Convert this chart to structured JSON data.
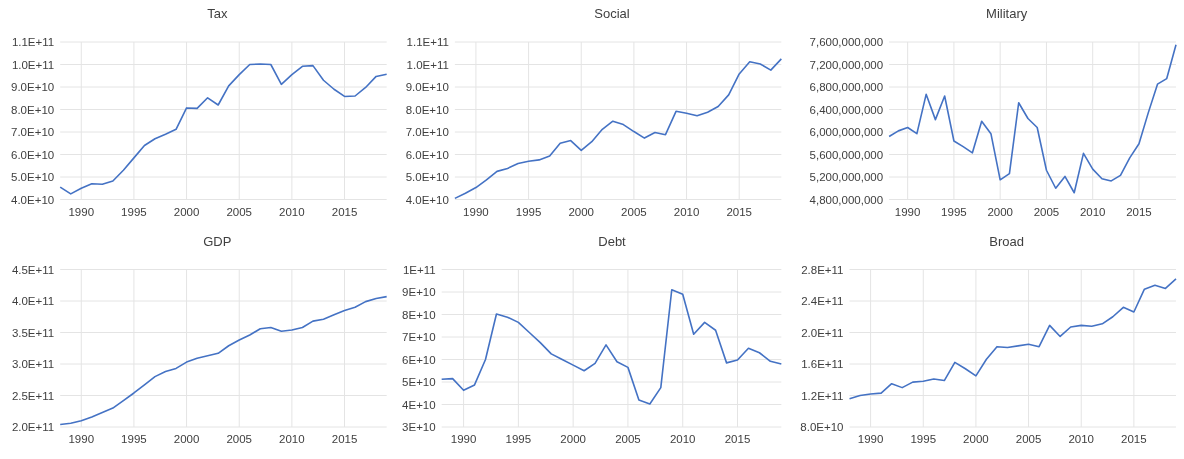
{
  "chart_data": [
    {
      "type": "line",
      "title": "Tax",
      "color": "#4472c4",
      "grid": true,
      "x": [
        1988,
        1989,
        1990,
        1991,
        1992,
        1993,
        1994,
        1995,
        1996,
        1997,
        1998,
        1999,
        2000,
        2001,
        2002,
        2003,
        2004,
        2005,
        2006,
        2007,
        2008,
        2009,
        2010,
        2011,
        2012,
        2013,
        2014,
        2015,
        2016,
        2017,
        2018,
        2019
      ],
      "values": [
        45500000000.0,
        42500000000.0,
        45000000000.0,
        47000000000.0,
        46800000000.0,
        48200000000.0,
        53000000000.0,
        58500000000.0,
        64000000000.0,
        67000000000.0,
        69000000000.0,
        71200000000.0,
        80700000000.0,
        80500000000.0,
        85200000000.0,
        82000000000.0,
        90500000000.0,
        95500000000.0,
        100000000000.0,
        100200000000.0,
        100000000000.0,
        91200000000.0,
        95500000000.0,
        99200000000.0,
        99500000000.0,
        93000000000.0,
        89000000000.0,
        85800000000.0,
        86000000000.0,
        89800000000.0,
        94700000000.0,
        95700000000.0
      ],
      "xlim": [
        1988,
        2019
      ],
      "xticks": [
        1990,
        1995,
        2000,
        2005,
        2010,
        2015
      ],
      "ylim": [
        40000000000.0,
        110000000000.0
      ],
      "yticks": [
        {
          "value": 40000000000.0,
          "label": "4.0E+10"
        },
        {
          "value": 50000000000.0,
          "label": "5.0E+10"
        },
        {
          "value": 60000000000.0,
          "label": "6.0E+10"
        },
        {
          "value": 70000000000.0,
          "label": "7.0E+10"
        },
        {
          "value": 80000000000.0,
          "label": "8.0E+10"
        },
        {
          "value": 90000000000.0,
          "label": "9.0E+10"
        },
        {
          "value": 100000000000.0,
          "label": "1.0E+11"
        },
        {
          "value": 110000000000.0,
          "label": "1.1E+11"
        }
      ]
    },
    {
      "type": "line",
      "title": "Social",
      "color": "#4472c4",
      "grid": true,
      "x": [
        1988,
        1989,
        1990,
        1991,
        1992,
        1993,
        1994,
        1995,
        1996,
        1997,
        1998,
        1999,
        2000,
        2001,
        2002,
        2003,
        2004,
        2005,
        2006,
        2007,
        2008,
        2009,
        2010,
        2011,
        2012,
        2013,
        2014,
        2015,
        2016,
        2017,
        2018,
        2019
      ],
      "values": [
        40500000000.0,
        42800000000.0,
        45300000000.0,
        48700000000.0,
        52500000000.0,
        53800000000.0,
        56000000000.0,
        57000000000.0,
        57600000000.0,
        59300000000.0,
        65000000000.0,
        66200000000.0,
        61800000000.0,
        65700000000.0,
        71200000000.0,
        74800000000.0,
        73300000000.0,
        70200000000.0,
        67300000000.0,
        69800000000.0,
        68800000000.0,
        79200000000.0,
        78300000000.0,
        77200000000.0,
        78800000000.0,
        81300000000.0,
        86500000000.0,
        95800000000.0,
        101200000000.0,
        100200000000.0,
        97500000000.0,
        102500000000.0
      ],
      "xlim": [
        1988,
        2019
      ],
      "xticks": [
        1990,
        1995,
        2000,
        2005,
        2010,
        2015
      ],
      "ylim": [
        40000000000.0,
        110000000000.0
      ],
      "yticks": [
        {
          "value": 40000000000.0,
          "label": "4.0E+10"
        },
        {
          "value": 50000000000.0,
          "label": "5.0E+10"
        },
        {
          "value": 60000000000.0,
          "label": "6.0E+10"
        },
        {
          "value": 70000000000.0,
          "label": "7.0E+10"
        },
        {
          "value": 80000000000.0,
          "label": "8.0E+10"
        },
        {
          "value": 90000000000.0,
          "label": "9.0E+10"
        },
        {
          "value": 100000000000.0,
          "label": "1.0E+11"
        },
        {
          "value": 110000000000.0,
          "label": "1.1E+11"
        }
      ]
    },
    {
      "type": "line",
      "title": "Military",
      "color": "#4472c4",
      "grid": true,
      "x": [
        1988,
        1989,
        1990,
        1991,
        1992,
        1993,
        1994,
        1995,
        1996,
        1997,
        1998,
        1999,
        2000,
        2001,
        2002,
        2003,
        2004,
        2005,
        2006,
        2007,
        2008,
        2009,
        2010,
        2011,
        2012,
        2013,
        2014,
        2015,
        2016,
        2017,
        2018,
        2019
      ],
      "values": [
        5920000000.0,
        6020000000.0,
        6080000000.0,
        5970000000.0,
        6670000000.0,
        6220000000.0,
        6640000000.0,
        5840000000.0,
        5740000000.0,
        5630000000.0,
        6190000000.0,
        5970000000.0,
        5150000000.0,
        5260000000.0,
        6520000000.0,
        6240000000.0,
        6080000000.0,
        5320000000.0,
        5000000000.0,
        5210000000.0,
        4920000000.0,
        5620000000.0,
        5340000000.0,
        5170000000.0,
        5130000000.0,
        5230000000.0,
        5540000000.0,
        5790000000.0,
        6340000000.0,
        6850000000.0,
        6950000000.0,
        7550000000.0
      ],
      "xlim": [
        1988,
        2019
      ],
      "xticks": [
        1990,
        1995,
        2000,
        2005,
        2010,
        2015
      ],
      "ylim": [
        4800000000.0,
        7600000000.0
      ],
      "yticks": [
        {
          "value": 4800000000.0,
          "label": "4,800,000,000"
        },
        {
          "value": 5200000000.0,
          "label": "5,200,000,000"
        },
        {
          "value": 5600000000.0,
          "label": "5,600,000,000"
        },
        {
          "value": 6000000000.0,
          "label": "6,000,000,000"
        },
        {
          "value": 6400000000.0,
          "label": "6,400,000,000"
        },
        {
          "value": 6800000000.0,
          "label": "6,800,000,000"
        },
        {
          "value": 7200000000.0,
          "label": "7,200,000,000"
        },
        {
          "value": 7600000000.0,
          "label": "7,600,000,000"
        }
      ]
    },
    {
      "type": "line",
      "title": "GDP",
      "color": "#4472c4",
      "grid": true,
      "x": [
        1988,
        1989,
        1990,
        1991,
        1992,
        1993,
        1994,
        1995,
        1996,
        1997,
        1998,
        1999,
        2000,
        2001,
        2002,
        2003,
        2004,
        2005,
        2006,
        2007,
        2008,
        2009,
        2010,
        2011,
        2012,
        2013,
        2014,
        2015,
        2016,
        2017,
        2018,
        2019
      ],
      "values": [
        204000000000.0,
        206000000000.0,
        210000000000.0,
        216000000000.0,
        223000000000.0,
        230000000000.0,
        242000000000.0,
        254000000000.0,
        267000000000.0,
        280000000000.0,
        288000000000.0,
        293000000000.0,
        303000000000.0,
        309000000000.0,
        313000000000.0,
        317000000000.0,
        329000000000.0,
        338000000000.0,
        346000000000.0,
        356000000000.0,
        358000000000.0,
        352000000000.0,
        354000000000.0,
        358000000000.0,
        368000000000.0,
        371000000000.0,
        378000000000.0,
        385000000000.0,
        390000000000.0,
        399000000000.0,
        404000000000.0,
        407000000000.0
      ],
      "xlim": [
        1988,
        2019
      ],
      "xticks": [
        1990,
        1995,
        2000,
        2005,
        2010,
        2015
      ],
      "ylim": [
        200000000000.0,
        450000000000.0
      ],
      "yticks": [
        {
          "value": 200000000000.0,
          "label": "2.0E+11"
        },
        {
          "value": 250000000000.0,
          "label": "2.5E+11"
        },
        {
          "value": 300000000000.0,
          "label": "3.0E+11"
        },
        {
          "value": 350000000000.0,
          "label": "3.5E+11"
        },
        {
          "value": 400000000000.0,
          "label": "4.0E+11"
        },
        {
          "value": 450000000000.0,
          "label": "4.5E+11"
        }
      ]
    },
    {
      "type": "line",
      "title": "Debt",
      "color": "#4472c4",
      "grid": true,
      "x": [
        1988,
        1989,
        1990,
        1991,
        1992,
        1993,
        1994,
        1995,
        1996,
        1997,
        1998,
        1999,
        2000,
        2001,
        2002,
        2003,
        2004,
        2005,
        2006,
        2007,
        2008,
        2009,
        2010,
        2011,
        2012,
        2013,
        2014,
        2015,
        2016,
        2017,
        2018,
        2019
      ],
      "values": [
        51200000000.0,
        51500000000.0,
        46300000000.0,
        48700000000.0,
        60000000000.0,
        80200000000.0,
        78800000000.0,
        76500000000.0,
        72000000000.0,
        67500000000.0,
        62500000000.0,
        60000000000.0,
        57500000000.0,
        55000000000.0,
        58300000000.0,
        66500000000.0,
        59000000000.0,
        56500000000.0,
        42000000000.0,
        40200000000.0,
        47500000000.0,
        91000000000.0,
        89000000000.0,
        71200000000.0,
        76500000000.0,
        73000000000.0,
        58500000000.0,
        59800000000.0,
        65000000000.0,
        63000000000.0,
        59200000000.0,
        58000000000.0
      ],
      "xlim": [
        1988,
        2019
      ],
      "xticks": [
        1990,
        1995,
        2000,
        2005,
        2010,
        2015
      ],
      "ylim": [
        30000000000.0,
        100000000000.0
      ],
      "yticks": [
        {
          "value": 30000000000.0,
          "label": "3E+10"
        },
        {
          "value": 40000000000.0,
          "label": "4E+10"
        },
        {
          "value": 50000000000.0,
          "label": "5E+10"
        },
        {
          "value": 60000000000.0,
          "label": "6E+10"
        },
        {
          "value": 70000000000.0,
          "label": "7E+10"
        },
        {
          "value": 80000000000.0,
          "label": "8E+10"
        },
        {
          "value": 90000000000.0,
          "label": "9E+10"
        },
        {
          "value": 100000000000.0,
          "label": "1E+11"
        }
      ]
    },
    {
      "type": "line",
      "title": "Broad",
      "color": "#4472c4",
      "grid": true,
      "x": [
        1988,
        1989,
        1990,
        1991,
        1992,
        1993,
        1994,
        1995,
        1996,
        1997,
        1998,
        1999,
        2000,
        2001,
        2002,
        2003,
        2004,
        2005,
        2006,
        2007,
        2008,
        2009,
        2010,
        2011,
        2012,
        2013,
        2014,
        2015,
        2016,
        2017,
        2018,
        2019
      ],
      "values": [
        116000000000.0,
        120000000000.0,
        122000000000.0,
        123000000000.0,
        135000000000.0,
        130000000000.0,
        137000000000.0,
        138000000000.0,
        141000000000.0,
        139000000000.0,
        162000000000.0,
        154000000000.0,
        145000000000.0,
        166000000000.0,
        182000000000.0,
        181000000000.0,
        183000000000.0,
        185000000000.0,
        182000000000.0,
        209000000000.0,
        195000000000.0,
        207000000000.0,
        209000000000.0,
        208000000000.0,
        211000000000.0,
        220000000000.0,
        232000000000.0,
        226000000000.0,
        255000000000.0,
        260000000000.0,
        256000000000.0,
        268000000000.0
      ],
      "xlim": [
        1988,
        2019
      ],
      "xticks": [
        1990,
        1995,
        2000,
        2005,
        2010,
        2015
      ],
      "ylim": [
        80000000000.0,
        280000000000.0
      ],
      "yticks": [
        {
          "value": 80000000000.0,
          "label": "8.0E+10"
        },
        {
          "value": 120000000000.0,
          "label": "1.2E+11"
        },
        {
          "value": 160000000000.0,
          "label": "1.6E+11"
        },
        {
          "value": 200000000000.0,
          "label": "2.0E+11"
        },
        {
          "value": 240000000000.0,
          "label": "2.4E+11"
        },
        {
          "value": 280000000000.0,
          "label": "2.8E+11"
        }
      ]
    }
  ]
}
